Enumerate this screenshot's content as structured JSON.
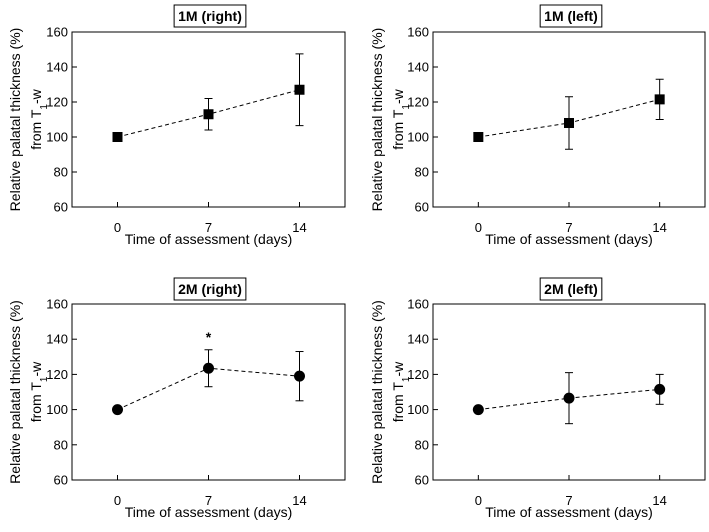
{
  "chart_data": [
    {
      "type": "line",
      "title": "1M (right)",
      "xlabel": "Time of assessment (days)",
      "ylabel_line1": "Relative palatal thickness (%)",
      "ylabel_line2_prefix": "from T",
      "ylabel_line2_sub": "1",
      "ylabel_line2_suffix": "-w",
      "x": [
        0,
        7,
        14
      ],
      "y": [
        100,
        113,
        127
      ],
      "yerr": [
        0,
        9,
        20.5
      ],
      "marker": "square",
      "xticks": [
        "0",
        "7",
        "14"
      ],
      "yticks": [
        60,
        80,
        100,
        120,
        140,
        160
      ],
      "ytick_labels": [
        "60",
        "80",
        "100",
        "120",
        "140",
        "160"
      ],
      "ylim": [
        60,
        160
      ],
      "annotation": ""
    },
    {
      "type": "line",
      "title": "1M (left)",
      "xlabel": "Time of assessment (days)",
      "ylabel_line1": "Relative palatal thickness (%)",
      "ylabel_line2_prefix": "from T",
      "ylabel_line2_sub": "1",
      "ylabel_line2_suffix": "-w",
      "x": [
        0,
        7,
        14
      ],
      "y": [
        100,
        108,
        121.5
      ],
      "yerr": [
        0,
        15,
        11.5
      ],
      "marker": "square",
      "xticks": [
        "0",
        "7",
        "14"
      ],
      "yticks": [
        60,
        80,
        100,
        120,
        140,
        160
      ],
      "ytick_labels": [
        "60",
        "80",
        "100",
        "120",
        "140",
        "160"
      ],
      "ylim": [
        60,
        160
      ],
      "annotation": ""
    },
    {
      "type": "line",
      "title": "2M (right)",
      "xlabel": "Time of assessment (days)",
      "ylabel_line1": "Relative palatal thickness (%)",
      "ylabel_line2_prefix": "from T",
      "ylabel_line2_sub": "1",
      "ylabel_line2_suffix": "-w",
      "x": [
        0,
        7,
        14
      ],
      "y": [
        100,
        123.5,
        119
      ],
      "yerr": [
        0,
        10.5,
        14
      ],
      "marker": "circle",
      "xticks": [
        "0",
        "7",
        "14"
      ],
      "yticks": [
        60,
        80,
        100,
        120,
        140,
        160
      ],
      "ytick_labels": [
        "60",
        "80",
        "100",
        "120",
        "140",
        "160"
      ],
      "ylim": [
        60,
        160
      ],
      "annotation": "*"
    },
    {
      "type": "line",
      "title": "2M (left)",
      "xlabel": "Time of assessment (days)",
      "ylabel_line1": "Relative palatal thickness (%)",
      "ylabel_line2_prefix": "from T",
      "ylabel_line2_sub": "1",
      "ylabel_line2_suffix": "-w",
      "x": [
        0,
        7,
        14
      ],
      "y": [
        100,
        106.5,
        111.5
      ],
      "yerr": [
        0,
        14.5,
        8.5
      ],
      "marker": "circle",
      "xticks": [
        "0",
        "7",
        "14"
      ],
      "yticks": [
        60,
        80,
        100,
        120,
        140,
        160
      ],
      "ytick_labels": [
        "60",
        "80",
        "100",
        "120",
        "140",
        "160"
      ],
      "ylim": [
        60,
        160
      ],
      "annotation": ""
    }
  ]
}
